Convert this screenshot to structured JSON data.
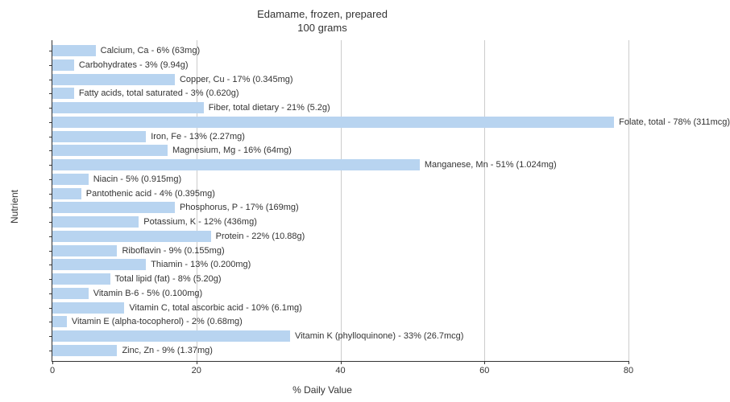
{
  "chart": {
    "type": "bar-horizontal",
    "title_line1": "Edamame, frozen, prepared",
    "title_line2": "100 grams",
    "title_fontsize": 13,
    "x_axis_label": "% Daily Value",
    "y_axis_label": "Nutrient",
    "axis_label_fontsize": 12,
    "tick_fontsize": 11,
    "bar_label_fontsize": 11,
    "background_color": "#ffffff",
    "bar_color": "#b8d4f0",
    "grid_color": "#cccccc",
    "axis_color": "#333333",
    "text_color": "#333333",
    "xlim": [
      0,
      80
    ],
    "xticks": [
      0,
      20,
      40,
      60,
      80
    ],
    "nutrients": [
      {
        "name": "Calcium, Ca",
        "percent": 6,
        "amount": "63mg",
        "label": "Calcium, Ca - 6% (63mg)"
      },
      {
        "name": "Carbohydrates",
        "percent": 3,
        "amount": "9.94g",
        "label": "Carbohydrates - 3% (9.94g)"
      },
      {
        "name": "Copper, Cu",
        "percent": 17,
        "amount": "0.345mg",
        "label": "Copper, Cu - 17% (0.345mg)"
      },
      {
        "name": "Fatty acids, total saturated",
        "percent": 3,
        "amount": "0.620g",
        "label": "Fatty acids, total saturated - 3% (0.620g)"
      },
      {
        "name": "Fiber, total dietary",
        "percent": 21,
        "amount": "5.2g",
        "label": "Fiber, total dietary - 21% (5.2g)"
      },
      {
        "name": "Folate, total",
        "percent": 78,
        "amount": "311mcg",
        "label": "Folate, total - 78% (311mcg)"
      },
      {
        "name": "Iron, Fe",
        "percent": 13,
        "amount": "2.27mg",
        "label": "Iron, Fe - 13% (2.27mg)"
      },
      {
        "name": "Magnesium, Mg",
        "percent": 16,
        "amount": "64mg",
        "label": "Magnesium, Mg - 16% (64mg)"
      },
      {
        "name": "Manganese, Mn",
        "percent": 51,
        "amount": "1.024mg",
        "label": "Manganese, Mn - 51% (1.024mg)"
      },
      {
        "name": "Niacin",
        "percent": 5,
        "amount": "0.915mg",
        "label": "Niacin - 5% (0.915mg)"
      },
      {
        "name": "Pantothenic acid",
        "percent": 4,
        "amount": "0.395mg",
        "label": "Pantothenic acid - 4% (0.395mg)"
      },
      {
        "name": "Phosphorus, P",
        "percent": 17,
        "amount": "169mg",
        "label": "Phosphorus, P - 17% (169mg)"
      },
      {
        "name": "Potassium, K",
        "percent": 12,
        "amount": "436mg",
        "label": "Potassium, K - 12% (436mg)"
      },
      {
        "name": "Protein",
        "percent": 22,
        "amount": "10.88g",
        "label": "Protein - 22% (10.88g)"
      },
      {
        "name": "Riboflavin",
        "percent": 9,
        "amount": "0.155mg",
        "label": "Riboflavin - 9% (0.155mg)"
      },
      {
        "name": "Thiamin",
        "percent": 13,
        "amount": "0.200mg",
        "label": "Thiamin - 13% (0.200mg)"
      },
      {
        "name": "Total lipid (fat)",
        "percent": 8,
        "amount": "5.20g",
        "label": "Total lipid (fat) - 8% (5.20g)"
      },
      {
        "name": "Vitamin B-6",
        "percent": 5,
        "amount": "0.100mg",
        "label": "Vitamin B-6 - 5% (0.100mg)"
      },
      {
        "name": "Vitamin C, total ascorbic acid",
        "percent": 10,
        "amount": "6.1mg",
        "label": "Vitamin C, total ascorbic acid - 10% (6.1mg)"
      },
      {
        "name": "Vitamin E (alpha-tocopherol)",
        "percent": 2,
        "amount": "0.68mg",
        "label": "Vitamin E (alpha-tocopherol) - 2% (0.68mg)"
      },
      {
        "name": "Vitamin K (phylloquinone)",
        "percent": 33,
        "amount": "26.7mcg",
        "label": "Vitamin K (phylloquinone) - 33% (26.7mcg)"
      },
      {
        "name": "Zinc, Zn",
        "percent": 9,
        "amount": "1.37mg",
        "label": "Zinc, Zn - 9% (1.37mg)"
      }
    ]
  }
}
